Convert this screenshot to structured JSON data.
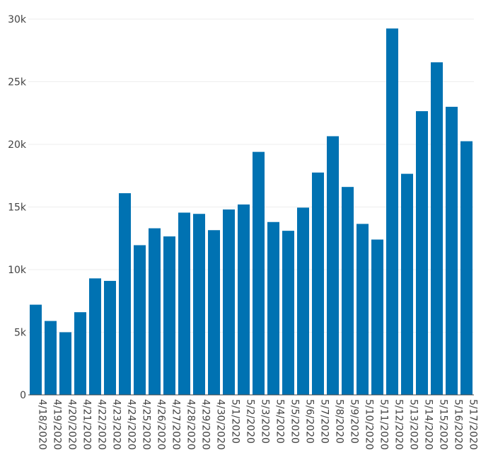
{
  "chart_data": {
    "type": "bar",
    "title": "",
    "xlabel": "",
    "ylabel": "",
    "categories": [
      "4/18/2020",
      "4/19/2020",
      "4/20/2020",
      "4/21/2020",
      "4/22/2020",
      "4/23/2020",
      "4/24/2020",
      "4/25/2020",
      "4/26/2020",
      "4/27/2020",
      "4/28/2020",
      "4/29/2020",
      "4/30/2020",
      "5/1/2020",
      "5/2/2020",
      "5/3/2020",
      "5/4/2020",
      "5/5/2020",
      "5/6/2020",
      "5/7/2020",
      "5/8/2020",
      "5/9/2020",
      "5/10/2020",
      "5/11/2020",
      "5/12/2020",
      "5/13/2020",
      "5/14/2020",
      "5/15/2020",
      "5/16/2020",
      "5/17/2020"
    ],
    "values": [
      7200,
      5900,
      5000,
      6600,
      9300,
      9100,
      16100,
      11950,
      13300,
      12650,
      14550,
      14450,
      13150,
      14800,
      15200,
      19400,
      13800,
      13100,
      14950,
      17750,
      20650,
      16600,
      13650,
      12400,
      29250,
      17650,
      22650,
      26550,
      23000,
      20250
    ],
    "ylim": [
      0,
      30000
    ],
    "yticks": [
      0,
      5000,
      10000,
      15000,
      20000,
      25000,
      30000
    ],
    "ytick_labels": [
      "0",
      "5k",
      "10k",
      "15k",
      "20k",
      "25k",
      "30k"
    ],
    "bar_color": "#0072b2",
    "grid": true,
    "legend": "none"
  }
}
